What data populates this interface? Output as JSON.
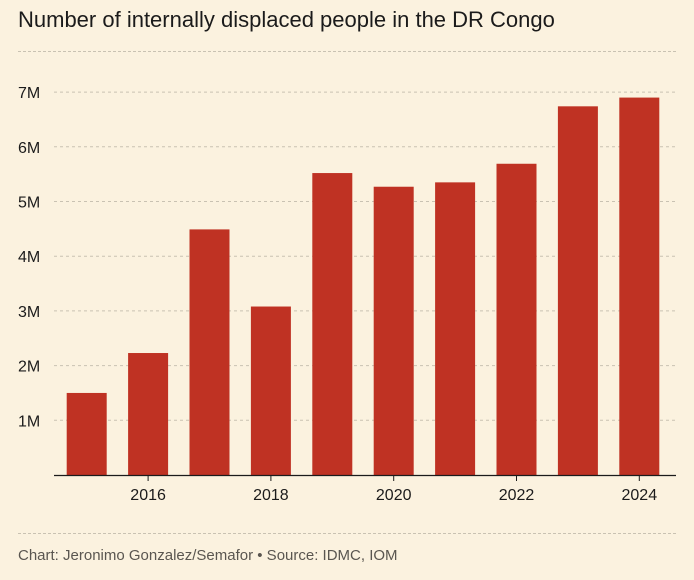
{
  "title": "Number of internally displaced people in the DR Congo",
  "footer": "Chart: Jeronimo Gonzalez/Semafor • Source: IDMC, IOM",
  "colors": {
    "bar": "#bf3223",
    "background": "#fbf2df",
    "grid": "#c9c2b2",
    "axis": "#1b1b1b"
  },
  "chart_data": {
    "type": "bar",
    "title": "Number of internally displaced people in the DR Congo",
    "xlabel": "",
    "ylabel": "",
    "categories": [
      "2015",
      "2016",
      "2017",
      "2018",
      "2019",
      "2020",
      "2021",
      "2022",
      "2023",
      "2024"
    ],
    "values": [
      1.5,
      2.23,
      4.49,
      3.08,
      5.52,
      5.27,
      5.35,
      5.69,
      6.74,
      6.9
    ],
    "value_unit": "millions",
    "ylim": [
      0,
      7.2
    ],
    "yticks": [
      1,
      2,
      3,
      4,
      5,
      6,
      7
    ],
    "ytick_labels": [
      "1M",
      "2M",
      "3M",
      "4M",
      "5M",
      "6M",
      "7M"
    ],
    "xtick_labels": [
      "2016",
      "2018",
      "2020",
      "2022",
      "2024"
    ],
    "grid": "horizontal dashed"
  }
}
